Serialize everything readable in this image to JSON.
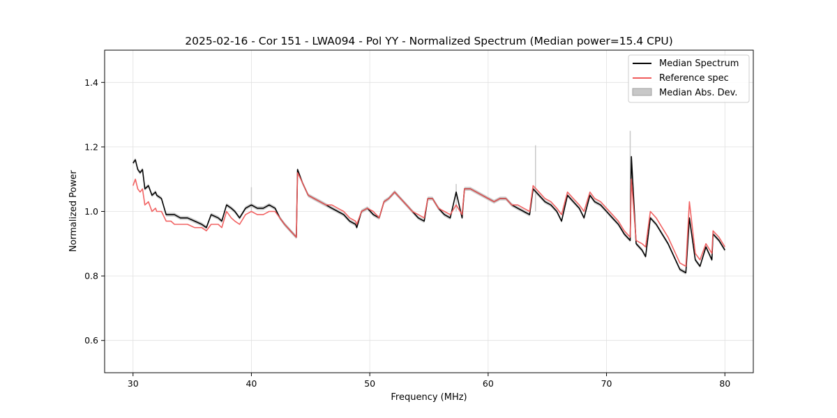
{
  "chart_data": {
    "type": "line",
    "title": "2025-02-16 - Cor 151 - LWA094 - Pol YY - Normalized Spectrum (Median power=15.4 CPU)",
    "xlabel": "Frequency (MHz)",
    "ylabel": "Normalized Power",
    "xlim": [
      27.6,
      82.4
    ],
    "ylim": [
      0.5,
      1.5
    ],
    "xticks": [
      30,
      40,
      50,
      60,
      70,
      80
    ],
    "yticks": [
      0.6,
      0.8,
      1.0,
      1.2,
      1.4
    ],
    "grid": true,
    "legend_position": "top-right",
    "colors": {
      "median": "#000000",
      "reference": "#f05a5a",
      "mad": "#c8c8c8"
    },
    "series": [
      {
        "name": "Median Spectrum",
        "x": [
          30.0,
          30.2,
          30.4,
          30.6,
          30.8,
          31.0,
          31.3,
          31.6,
          31.9,
          32.0,
          32.4,
          32.8,
          33.2,
          33.5,
          34.0,
          34.6,
          35.2,
          35.8,
          36.2,
          36.6,
          37.2,
          37.5,
          37.9,
          38.3,
          38.6,
          39.0,
          39.5,
          40.0,
          40.5,
          41.0,
          41.5,
          42.0,
          42.4,
          42.8,
          43.3,
          43.8,
          43.9,
          44.3,
          44.8,
          45.3,
          45.8,
          46.3,
          46.8,
          47.3,
          47.8,
          48.3,
          48.8,
          48.9,
          49.3,
          49.8,
          50.3,
          50.8,
          51.2,
          51.6,
          52.1,
          52.6,
          53.1,
          53.6,
          54.1,
          54.6,
          54.9,
          55.3,
          55.8,
          56.3,
          56.8,
          57.3,
          57.8,
          58.0,
          58.5,
          59.0,
          59.5,
          60.0,
          60.5,
          61.0,
          61.5,
          62.0,
          62.5,
          63.0,
          63.5,
          63.8,
          64.3,
          64.8,
          65.3,
          65.8,
          66.2,
          66.7,
          67.2,
          67.7,
          68.1,
          68.6,
          69.0,
          69.5,
          70.0,
          70.5,
          71.0,
          71.5,
          72.0,
          72.1,
          72.5,
          73.0,
          73.3,
          73.7,
          74.2,
          74.7,
          75.2,
          75.7,
          76.2,
          76.7,
          77.0,
          77.5,
          77.9,
          78.4,
          78.9,
          79.0,
          79.5,
          80.0
        ],
        "values": [
          1.15,
          1.16,
          1.13,
          1.12,
          1.13,
          1.07,
          1.08,
          1.05,
          1.06,
          1.05,
          1.04,
          0.99,
          0.99,
          0.99,
          0.98,
          0.98,
          0.97,
          0.96,
          0.95,
          0.99,
          0.98,
          0.97,
          1.02,
          1.01,
          1.0,
          0.98,
          1.01,
          1.02,
          1.01,
          1.01,
          1.02,
          1.01,
          0.98,
          0.96,
          0.94,
          0.92,
          1.13,
          1.09,
          1.05,
          1.04,
          1.03,
          1.02,
          1.01,
          1.0,
          0.99,
          0.97,
          0.96,
          0.95,
          1.0,
          1.01,
          0.99,
          0.98,
          1.03,
          1.04,
          1.06,
          1.04,
          1.02,
          1.0,
          0.98,
          0.97,
          1.04,
          1.04,
          1.01,
          0.99,
          0.98,
          1.06,
          0.98,
          1.07,
          1.07,
          1.06,
          1.05,
          1.04,
          1.03,
          1.04,
          1.04,
          1.02,
          1.01,
          1.0,
          0.99,
          1.07,
          1.05,
          1.03,
          1.02,
          1.0,
          0.97,
          1.05,
          1.03,
          1.01,
          0.98,
          1.05,
          1.03,
          1.02,
          1.0,
          0.98,
          0.96,
          0.93,
          0.91,
          1.17,
          0.9,
          0.88,
          0.86,
          0.98,
          0.96,
          0.93,
          0.9,
          0.86,
          0.82,
          0.81,
          0.98,
          0.85,
          0.83,
          0.89,
          0.85,
          0.93,
          0.91,
          0.88
        ]
      },
      {
        "name": "Reference spec",
        "x": [
          30.0,
          30.2,
          30.4,
          30.6,
          30.8,
          31.0,
          31.3,
          31.6,
          31.9,
          32.0,
          32.4,
          32.8,
          33.2,
          33.5,
          34.0,
          34.6,
          35.2,
          35.8,
          36.2,
          36.6,
          37.2,
          37.5,
          37.9,
          38.3,
          38.6,
          39.0,
          39.5,
          40.0,
          40.5,
          41.0,
          41.5,
          42.0,
          42.4,
          42.8,
          43.3,
          43.8,
          43.9,
          44.3,
          44.8,
          45.3,
          45.8,
          46.3,
          46.8,
          47.3,
          47.8,
          48.3,
          48.8,
          48.9,
          49.3,
          49.8,
          50.3,
          50.8,
          51.2,
          51.6,
          52.1,
          52.6,
          53.1,
          53.6,
          54.1,
          54.6,
          54.9,
          55.3,
          55.8,
          56.3,
          56.8,
          57.3,
          57.8,
          58.0,
          58.5,
          59.0,
          59.5,
          60.0,
          60.5,
          61.0,
          61.5,
          62.0,
          62.5,
          63.0,
          63.5,
          63.8,
          64.3,
          64.8,
          65.3,
          65.8,
          66.2,
          66.7,
          67.2,
          67.7,
          68.1,
          68.6,
          69.0,
          69.5,
          70.0,
          70.5,
          71.0,
          71.5,
          72.0,
          72.1,
          72.5,
          73.0,
          73.3,
          73.7,
          74.2,
          74.7,
          75.2,
          75.7,
          76.2,
          76.7,
          77.0,
          77.5,
          77.9,
          78.4,
          78.9,
          79.0,
          79.5,
          80.0
        ],
        "values": [
          1.08,
          1.1,
          1.07,
          1.06,
          1.07,
          1.02,
          1.03,
          1.0,
          1.01,
          1.0,
          1.0,
          0.97,
          0.97,
          0.96,
          0.96,
          0.96,
          0.95,
          0.95,
          0.94,
          0.96,
          0.96,
          0.95,
          1.0,
          0.98,
          0.97,
          0.96,
          0.99,
          1.0,
          0.99,
          0.99,
          1.0,
          1.0,
          0.98,
          0.96,
          0.94,
          0.92,
          1.12,
          1.09,
          1.05,
          1.04,
          1.03,
          1.02,
          1.02,
          1.01,
          1.0,
          0.98,
          0.97,
          0.96,
          1.0,
          1.01,
          1.0,
          0.98,
          1.03,
          1.04,
          1.06,
          1.04,
          1.02,
          1.0,
          0.99,
          0.98,
          1.04,
          1.04,
          1.01,
          1.0,
          0.99,
          1.02,
          0.99,
          1.07,
          1.07,
          1.06,
          1.05,
          1.04,
          1.03,
          1.04,
          1.04,
          1.02,
          1.02,
          1.01,
          1.0,
          1.08,
          1.06,
          1.04,
          1.03,
          1.01,
          0.99,
          1.06,
          1.04,
          1.02,
          1.0,
          1.06,
          1.04,
          1.03,
          1.01,
          0.99,
          0.97,
          0.94,
          0.92,
          1.1,
          0.91,
          0.9,
          0.89,
          1.0,
          0.98,
          0.95,
          0.92,
          0.88,
          0.84,
          0.83,
          1.03,
          0.87,
          0.85,
          0.9,
          0.87,
          0.94,
          0.92,
          0.89
        ]
      },
      {
        "name": "Median Abs. Dev.",
        "type": "band",
        "note": "Narrow gray band around the median spectrum; spikes at ~64 MHz (1.21) and ~72 MHz (1.25)"
      }
    ],
    "legend": [
      "Median Spectrum",
      "Reference spec",
      "Median Abs. Dev."
    ]
  }
}
